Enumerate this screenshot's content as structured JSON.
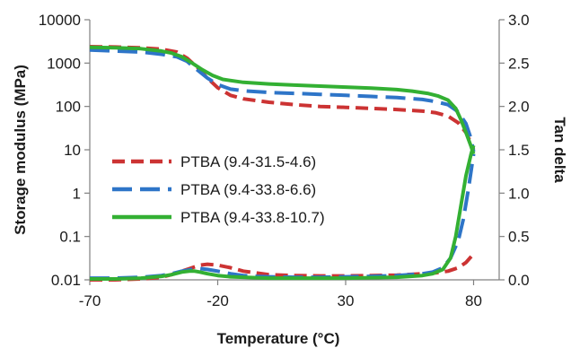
{
  "chart_data": {
    "type": "line",
    "xlabel": "Temperature (°C)",
    "ylabel": "Storage modulus (MPa)",
    "y2label": "Tan delta",
    "xlim": [
      -70,
      90
    ],
    "ylim": [
      0.01,
      10000
    ],
    "y_scale": "log",
    "y2lim": [
      0.0,
      3.0
    ],
    "grid": false,
    "legend_position": "lower-left",
    "x_ticks": [
      -70,
      -20,
      30,
      80
    ],
    "x_tick_labels": [
      "-70",
      "-20",
      "30",
      "80"
    ],
    "y_ticks": [
      0.01,
      0.1,
      1,
      10,
      100,
      1000,
      10000
    ],
    "y_tick_labels": [
      "0.01",
      "0.1",
      "1",
      "10",
      "100",
      "1000",
      "10000"
    ],
    "y2_ticks": [
      0.0,
      0.5,
      1.0,
      1.5,
      2.0,
      2.5,
      3.0
    ],
    "y2_tick_labels": [
      "0.0",
      "0.5",
      "1.0",
      "1.5",
      "2.0",
      "2.5",
      "3.0"
    ],
    "series": [
      {
        "name": "PTBA (9.4-31.5-4.6)",
        "color": "#cc3333",
        "dash": "dashed",
        "modulus": {
          "x": [
            -70,
            -60,
            -50,
            -42,
            -36,
            -32,
            -28,
            -24,
            -20,
            -15,
            -10,
            0,
            10,
            20,
            30,
            40,
            50,
            60,
            65,
            70,
            74,
            77,
            79,
            80
          ],
          "y": [
            2400,
            2350,
            2250,
            2100,
            1800,
            1300,
            800,
            450,
            270,
            180,
            150,
            125,
            110,
            100,
            95,
            90,
            85,
            78,
            72,
            60,
            42,
            25,
            14,
            10
          ]
        },
        "tan_delta": {
          "x": [
            -70,
            -60,
            -50,
            -42,
            -38,
            -34,
            -30,
            -27,
            -24,
            -20,
            -15,
            -10,
            -5,
            0,
            10,
            20,
            30,
            40,
            50,
            60,
            65,
            70,
            74,
            77,
            80
          ],
          "y": [
            0.0,
            0.0,
            0.01,
            0.03,
            0.06,
            0.1,
            0.14,
            0.17,
            0.18,
            0.17,
            0.14,
            0.1,
            0.08,
            0.06,
            0.05,
            0.045,
            0.045,
            0.05,
            0.055,
            0.07,
            0.08,
            0.1,
            0.14,
            0.2,
            0.3
          ]
        }
      },
      {
        "name": "PTBA (9.4-33.8-6.6)",
        "color": "#2e75c8",
        "dash": "longdash",
        "modulus": {
          "x": [
            -70,
            -60,
            -50,
            -42,
            -36,
            -32,
            -28,
            -24,
            -20,
            -15,
            -10,
            0,
            10,
            20,
            30,
            40,
            50,
            60,
            65,
            70,
            74,
            77,
            79,
            80
          ],
          "y": [
            2000,
            1900,
            1800,
            1600,
            1400,
            1100,
            700,
            450,
            320,
            250,
            230,
            210,
            200,
            190,
            180,
            170,
            160,
            145,
            130,
            110,
            75,
            40,
            18,
            9
          ]
        },
        "tan_delta": {
          "x": [
            -70,
            -60,
            -50,
            -42,
            -38,
            -34,
            -30,
            -27,
            -24,
            -20,
            -15,
            -10,
            -5,
            0,
            10,
            20,
            30,
            40,
            50,
            60,
            64,
            68,
            71,
            74,
            76,
            78,
            80
          ],
          "y": [
            0.02,
            0.02,
            0.03,
            0.05,
            0.07,
            0.1,
            0.12,
            0.13,
            0.12,
            0.1,
            0.07,
            0.05,
            0.04,
            0.035,
            0.03,
            0.03,
            0.035,
            0.04,
            0.05,
            0.07,
            0.09,
            0.14,
            0.25,
            0.45,
            0.7,
            1.05,
            1.45
          ]
        }
      },
      {
        "name": "PTBA (9.4-33.8-10.7)",
        "color": "#33b033",
        "dash": "solid",
        "modulus": {
          "x": [
            -70,
            -60,
            -50,
            -42,
            -38,
            -34,
            -30,
            -26,
            -22,
            -18,
            -10,
            0,
            10,
            20,
            30,
            40,
            50,
            56,
            62,
            66,
            70,
            73,
            75,
            77,
            79,
            80
          ],
          "y": [
            2300,
            2250,
            2150,
            1900,
            1700,
            1400,
            1000,
            700,
            520,
            420,
            360,
            330,
            310,
            295,
            280,
            265,
            245,
            225,
            200,
            175,
            140,
            90,
            50,
            25,
            12,
            8
          ]
        },
        "tan_delta": {
          "x": [
            -70,
            -60,
            -50,
            -42,
            -38,
            -34,
            -31,
            -29,
            -27,
            -24,
            -20,
            -15,
            -10,
            -5,
            0,
            10,
            20,
            30,
            40,
            50,
            60,
            64,
            68,
            71,
            73,
            75,
            77,
            79,
            80
          ],
          "y": [
            0.01,
            0.01,
            0.02,
            0.04,
            0.06,
            0.09,
            0.1,
            0.1,
            0.09,
            0.07,
            0.05,
            0.035,
            0.03,
            0.025,
            0.02,
            0.02,
            0.02,
            0.02,
            0.025,
            0.03,
            0.05,
            0.07,
            0.12,
            0.25,
            0.5,
            0.85,
            1.2,
            1.45,
            1.55
          ]
        }
      }
    ]
  }
}
